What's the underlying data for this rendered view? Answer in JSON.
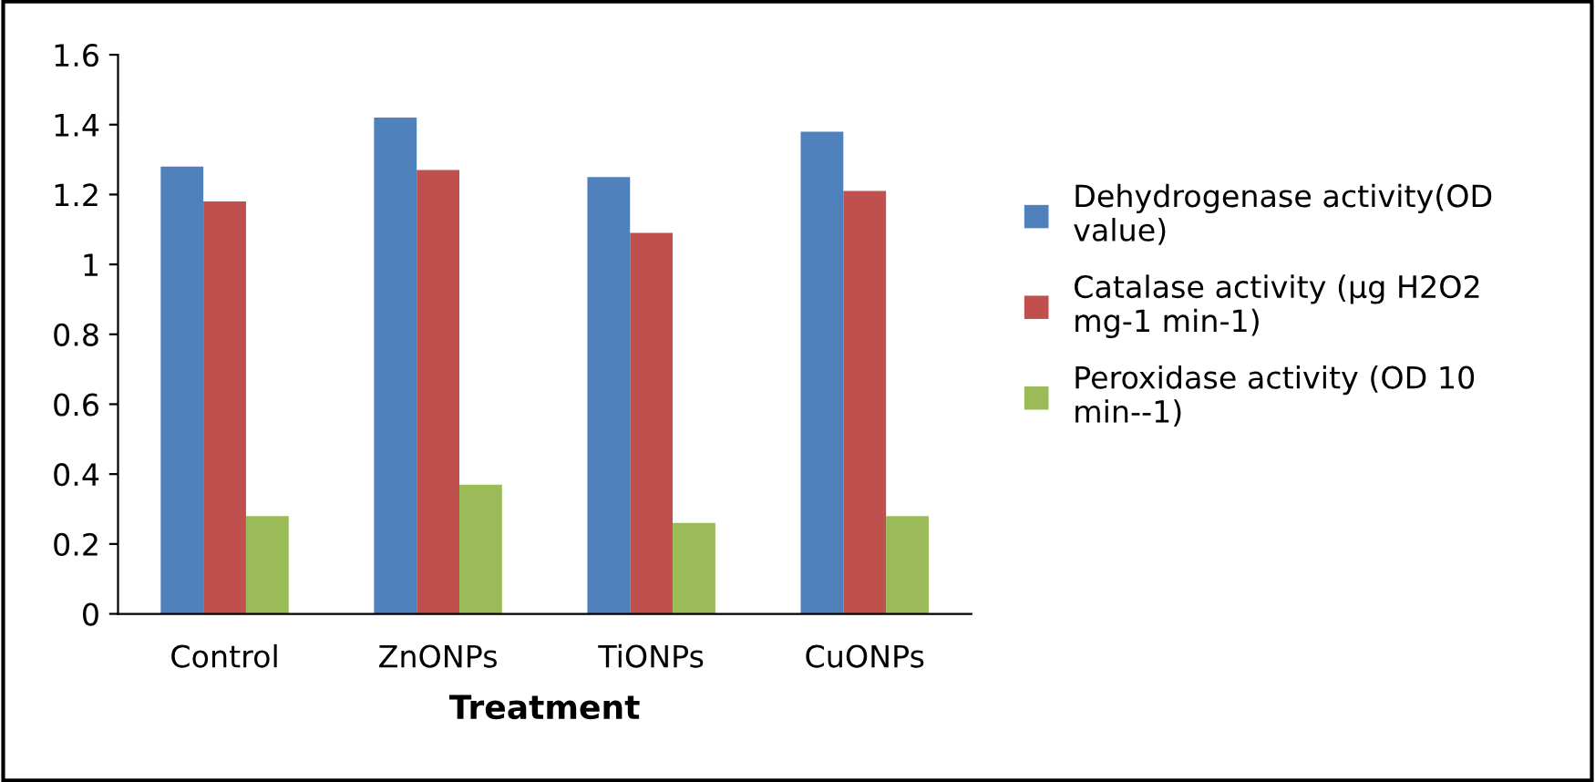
{
  "chart_data": {
    "type": "bar",
    "xlabel": "Treatment",
    "categories": [
      "Control",
      "ZnONPs",
      "TiONPs",
      "CuONPs"
    ],
    "series": [
      {
        "name": "Dehydrogenase activity(OD\nvalue)",
        "color": "#4f81bd",
        "values": [
          1.28,
          1.42,
          1.25,
          1.38
        ]
      },
      {
        "name": "Catalase activity (µg H2O2\nmg-1 min-1)",
        "color": "#c0504d",
        "values": [
          1.18,
          1.27,
          1.09,
          1.21
        ]
      },
      {
        "name": "Peroxidase activity (OD 10\nmin--1)",
        "color": "#9bbb59",
        "values": [
          0.28,
          0.37,
          0.26,
          0.28
        ]
      }
    ],
    "ylim": [
      0,
      1.6
    ],
    "yticks": [
      0,
      0.2,
      0.4,
      0.6,
      0.8,
      1,
      1.2,
      1.4,
      1.6
    ],
    "grid": false,
    "legend": "right"
  }
}
